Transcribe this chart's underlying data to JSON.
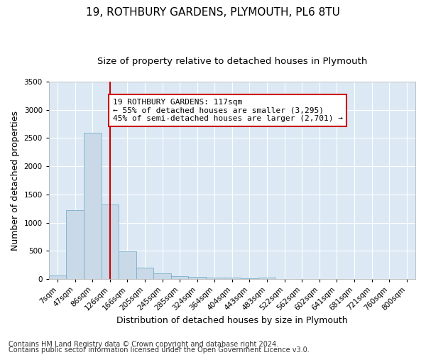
{
  "title": "19, ROTHBURY GARDENS, PLYMOUTH, PL6 8TU",
  "subtitle": "Size of property relative to detached houses in Plymouth",
  "xlabel": "Distribution of detached houses by size in Plymouth",
  "ylabel": "Number of detached properties",
  "categories": [
    "7sqm",
    "47sqm",
    "86sqm",
    "126sqm",
    "166sqm",
    "205sqm",
    "245sqm",
    "285sqm",
    "324sqm",
    "364sqm",
    "404sqm",
    "443sqm",
    "483sqm",
    "522sqm",
    "562sqm",
    "602sqm",
    "641sqm",
    "681sqm",
    "721sqm",
    "760sqm",
    "800sqm"
  ],
  "values": [
    60,
    1220,
    2600,
    1320,
    490,
    200,
    100,
    55,
    40,
    30,
    20,
    10,
    30,
    5,
    5,
    5,
    5,
    5,
    5,
    5,
    5
  ],
  "bar_color": "#c9d9e8",
  "bar_edge_color": "#7aaec8",
  "vline_x_pos": 3.0,
  "vline_color": "#cc0000",
  "annotation_text": "19 ROTHBURY GARDENS: 117sqm\n← 55% of detached houses are smaller (3,295)\n45% of semi-detached houses are larger (2,701) →",
  "annotation_box_color": "#cc0000",
  "ylim": [
    0,
    3500
  ],
  "yticks": [
    0,
    500,
    1000,
    1500,
    2000,
    2500,
    3000,
    3500
  ],
  "footnote1": "Contains HM Land Registry data © Crown copyright and database right 2024.",
  "footnote2": "Contains public sector information licensed under the Open Government Licence v3.0.",
  "plot_bg_color": "#dce9f5",
  "title_fontsize": 11,
  "subtitle_fontsize": 9.5,
  "axis_label_fontsize": 9,
  "tick_fontsize": 7.5,
  "annotation_fontsize": 8,
  "footnote_fontsize": 7
}
